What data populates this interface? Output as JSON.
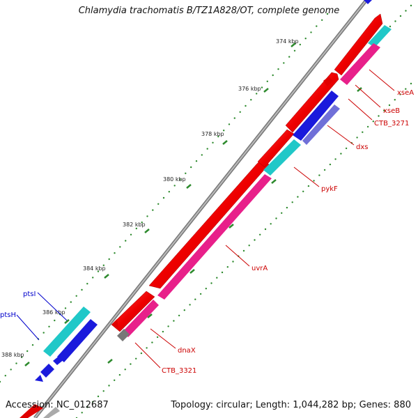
{
  "title": "Chlamydia trachomatis B/TZ1A828/OT, complete genome",
  "footer": {
    "accession": "Accession: NC_012687",
    "summary": "Topology: circular; Length: 1,044,282 bp; Genes: 880"
  },
  "ticks": [
    "374 kbp",
    "376 kbp",
    "378 kbp",
    "380 kbp",
    "382 kbp",
    "384 kbp",
    "386 kbp",
    "388 kbp"
  ],
  "genes": {
    "right": [
      "xseA",
      "xseB",
      "CTB_3271",
      "dxs",
      "pykF",
      "uvrA",
      "dnaX",
      "CTB_3321"
    ],
    "left": [
      "ptsI",
      "ptsH"
    ]
  },
  "colors": {
    "forward": "#ff0000",
    "forward_fill": "#e61010",
    "reverse": "#0000e0",
    "magenta": "#e8208a",
    "cyan": "#20c8c8",
    "slate": "#6a6ad8",
    "gray": "#808080",
    "tick": "#2d8a2d",
    "label_red": "#cc0000",
    "label_blue": "#0000cc"
  }
}
